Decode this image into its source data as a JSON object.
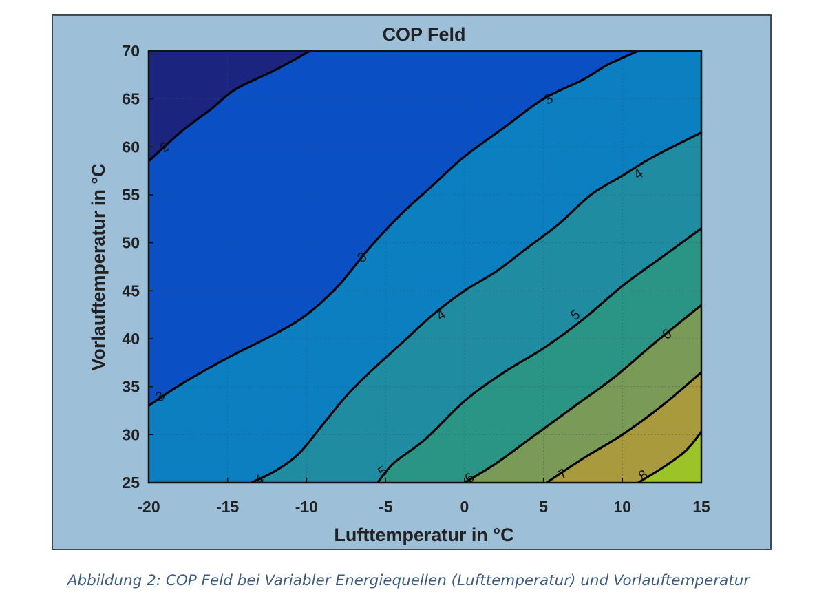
{
  "chart_data": {
    "type": "contourf",
    "title": "COP Feld",
    "xlabel": "Lufttemperatur in °C",
    "ylabel": "Vorlauftemperatur in °C",
    "xlim": [
      -20,
      15
    ],
    "ylim": [
      25,
      70
    ],
    "xticks": [
      -20,
      -15,
      -10,
      -5,
      0,
      5,
      10,
      15
    ],
    "yticks": [
      25,
      30,
      35,
      40,
      45,
      50,
      55,
      60,
      65,
      70
    ],
    "grid": true,
    "levels": [
      {
        "value": 2,
        "label": "2",
        "fill_above": "#1b2580",
        "points": [
          [
            -20,
            58.5
          ],
          [
            -18,
            61.5
          ],
          [
            -16,
            64
          ],
          [
            -14.5,
            66
          ],
          [
            -12,
            68
          ],
          [
            -10,
            69.8
          ],
          [
            -9.8,
            70
          ]
        ],
        "label_at": [
          -19,
          60
        ]
      },
      {
        "value": 3,
        "label": "3",
        "fill_above": "#1e2378",
        "points": [
          [
            -20,
            33
          ],
          [
            -18,
            35.2
          ],
          [
            -15,
            38
          ],
          [
            -12,
            40.5
          ],
          [
            -10,
            42.5
          ],
          [
            -8,
            45.5
          ],
          [
            -6,
            49.5
          ],
          [
            -4,
            53
          ],
          [
            -2,
            56
          ],
          [
            0,
            59
          ],
          [
            2.5,
            62
          ],
          [
            5,
            65
          ],
          [
            7.5,
            67
          ],
          [
            9,
            68.5
          ],
          [
            11,
            70
          ]
        ],
        "label_at": [
          -6.5,
          48.5
        ],
        "label_at_2": [
          -19.3,
          34
        ],
        "label_at_3": [
          5.3,
          65
        ]
      },
      {
        "value": 4,
        "label": "4",
        "fill_above": "#0a56c8",
        "points": [
          [
            -13.5,
            25
          ],
          [
            -12,
            26.2
          ],
          [
            -10.5,
            28
          ],
          [
            -9,
            31
          ],
          [
            -7.5,
            34
          ],
          [
            -6,
            36.5
          ],
          [
            -4,
            39.5
          ],
          [
            -2,
            42.5
          ],
          [
            0,
            45
          ],
          [
            2,
            47
          ],
          [
            4,
            49.5
          ],
          [
            6,
            52
          ],
          [
            8,
            55
          ],
          [
            10,
            57
          ],
          [
            12,
            59
          ],
          [
            15,
            61.5
          ]
        ],
        "label_at": [
          -1.5,
          42.5
        ],
        "label_at_2": [
          -13,
          25.3
        ],
        "label_at_3": [
          11,
          57.2
        ]
      },
      {
        "value": 5,
        "label": "5",
        "fill_above": "#0b81c0",
        "points": [
          [
            -5.5,
            25
          ],
          [
            -4.5,
            27
          ],
          [
            -2.5,
            29.5
          ],
          [
            0,
            33.5
          ],
          [
            2.5,
            36.5
          ],
          [
            5,
            39
          ],
          [
            7.5,
            42
          ],
          [
            10,
            45.5
          ],
          [
            12.5,
            48.5
          ],
          [
            15,
            51.5
          ]
        ],
        "label_at": [
          7,
          42.5
        ],
        "label_at_2": [
          -5.2,
          26.2
        ]
      },
      {
        "value": 6,
        "label": "6",
        "fill_above": "#1e8ba8",
        "points": [
          [
            0,
            25
          ],
          [
            2,
            27
          ],
          [
            4.5,
            30
          ],
          [
            7,
            33
          ],
          [
            9.5,
            36
          ],
          [
            12,
            39.5
          ],
          [
            15,
            43.5
          ]
        ],
        "label_at": [
          12.8,
          40.5
        ],
        "label_at_2": [
          0.3,
          25.5
        ]
      },
      {
        "value": 7,
        "label": "7",
        "fill_above": "#2a9a8c",
        "points": [
          [
            5.2,
            25
          ],
          [
            7.5,
            27.5
          ],
          [
            10,
            30
          ],
          [
            12.5,
            33
          ],
          [
            15,
            36.5
          ]
        ],
        "label_at": [
          6.2,
          25.9
        ]
      },
      {
        "value": 8,
        "label": "8",
        "fill_above": "#6c9a5f",
        "points": [
          [
            11,
            25
          ],
          [
            12.5,
            26.5
          ],
          [
            14,
            28.3
          ],
          [
            15,
            30.3
          ]
        ],
        "label_at": [
          11.3,
          25.8
        ]
      }
    ],
    "fill_below_lowest": "#1b2580",
    "fill_top_band": "#a89a3d",
    "fill_highest": "#9cc428"
  },
  "colors": {
    "figure_bg": "#9dbfd8",
    "frame": "#3c4a5a",
    "contour_line": "#000000",
    "grid": "#3a4a6a",
    "text": "#222222",
    "caption": "#3a5b84"
  },
  "caption": "Abbildung 2: COP Feld bei Variabler Energiequellen (Lufttemperatur) und Vorlauftemperatur"
}
